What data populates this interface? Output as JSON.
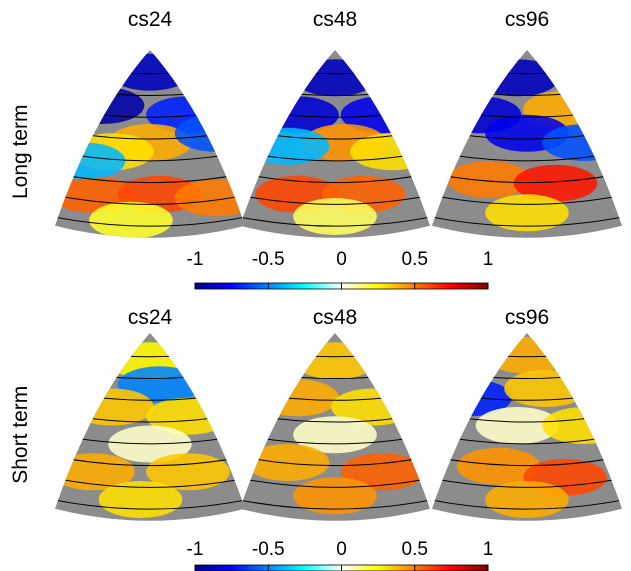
{
  "chart_data": [
    {
      "type": "heatmap",
      "row_label": "Long term",
      "panels": [
        {
          "title": "cs24",
          "patches": [
            {
              "u": 0.5,
              "v": 0.12,
              "value": -0.9
            },
            {
              "u": 0.25,
              "v": 0.3,
              "value": -0.95
            },
            {
              "u": 0.7,
              "v": 0.35,
              "value": -0.7
            },
            {
              "u": 0.5,
              "v": 0.5,
              "value": 0.4
            },
            {
              "u": 0.3,
              "v": 0.55,
              "value": 0.3
            },
            {
              "u": 0.85,
              "v": 0.45,
              "value": -0.6
            },
            {
              "u": 0.2,
              "v": 0.78,
              "value": 0.55
            },
            {
              "u": 0.55,
              "v": 0.78,
              "value": 0.6
            },
            {
              "u": 0.85,
              "v": 0.8,
              "value": 0.5
            },
            {
              "u": 0.15,
              "v": 0.6,
              "value": -0.4
            },
            {
              "u": 0.4,
              "v": 0.92,
              "value": 0.2
            }
          ]
        },
        {
          "title": "cs48",
          "patches": [
            {
              "u": 0.5,
              "v": 0.15,
              "value": -0.9
            },
            {
              "u": 0.3,
              "v": 0.35,
              "value": -0.85
            },
            {
              "u": 0.75,
              "v": 0.35,
              "value": -0.8
            },
            {
              "u": 0.55,
              "v": 0.5,
              "value": 0.45
            },
            {
              "u": 0.25,
              "v": 0.52,
              "value": -0.4
            },
            {
              "u": 0.8,
              "v": 0.55,
              "value": 0.3
            },
            {
              "u": 0.3,
              "v": 0.78,
              "value": 0.6
            },
            {
              "u": 0.65,
              "v": 0.78,
              "value": 0.55
            },
            {
              "u": 0.5,
              "v": 0.9,
              "value": 0.15
            }
          ]
        },
        {
          "title": "cs96",
          "patches": [
            {
              "u": 0.45,
              "v": 0.15,
              "value": -0.9
            },
            {
              "u": 0.25,
              "v": 0.35,
              "value": -0.85
            },
            {
              "u": 0.7,
              "v": 0.32,
              "value": 0.4
            },
            {
              "u": 0.5,
              "v": 0.45,
              "value": -0.8
            },
            {
              "u": 0.8,
              "v": 0.5,
              "value": -0.6
            },
            {
              "u": 0.3,
              "v": 0.7,
              "value": 0.5
            },
            {
              "u": 0.65,
              "v": 0.72,
              "value": 0.7
            },
            {
              "u": 0.5,
              "v": 0.88,
              "value": 0.3
            }
          ]
        }
      ]
    },
    {
      "type": "heatmap",
      "row_label": "Short term",
      "panels": [
        {
          "title": "cs24",
          "patches": [
            {
              "u": 0.5,
              "v": 0.15,
              "value": 0.25
            },
            {
              "u": 0.55,
              "v": 0.28,
              "value": -0.5
            },
            {
              "u": 0.3,
              "v": 0.4,
              "value": 0.35
            },
            {
              "u": 0.7,
              "v": 0.45,
              "value": 0.3
            },
            {
              "u": 0.5,
              "v": 0.6,
              "value": 0.05
            },
            {
              "u": 0.2,
              "v": 0.75,
              "value": 0.4
            },
            {
              "u": 0.7,
              "v": 0.75,
              "value": 0.35
            },
            {
              "u": 0.45,
              "v": 0.9,
              "value": 0.3
            }
          ]
        },
        {
          "title": "cs48",
          "patches": [
            {
              "u": 0.5,
              "v": 0.15,
              "value": 0.35
            },
            {
              "u": 0.3,
              "v": 0.35,
              "value": 0.4
            },
            {
              "u": 0.7,
              "v": 0.4,
              "value": 0.3
            },
            {
              "u": 0.5,
              "v": 0.55,
              "value": 0.05
            },
            {
              "u": 0.25,
              "v": 0.7,
              "value": 0.4
            },
            {
              "u": 0.75,
              "v": 0.75,
              "value": 0.55
            },
            {
              "u": 0.5,
              "v": 0.88,
              "value": 0.45
            }
          ]
        },
        {
          "title": "cs96",
          "patches": [
            {
              "u": 0.5,
              "v": 0.12,
              "value": 0.4
            },
            {
              "u": 0.2,
              "v": 0.35,
              "value": -0.7
            },
            {
              "u": 0.6,
              "v": 0.3,
              "value": 0.35
            },
            {
              "u": 0.45,
              "v": 0.5,
              "value": 0.05
            },
            {
              "u": 0.8,
              "v": 0.5,
              "value": 0.3
            },
            {
              "u": 0.35,
              "v": 0.72,
              "value": 0.45
            },
            {
              "u": 0.7,
              "v": 0.78,
              "value": 0.6
            },
            {
              "u": 0.5,
              "v": 0.9,
              "value": 0.4
            }
          ]
        }
      ]
    }
  ],
  "colorbar": {
    "min": -1,
    "max": 1,
    "ticks": [
      "-1",
      "-0.5",
      "0",
      "0.5",
      "1"
    ],
    "colormap": "jet",
    "gray_color": "#8c8c8c"
  }
}
